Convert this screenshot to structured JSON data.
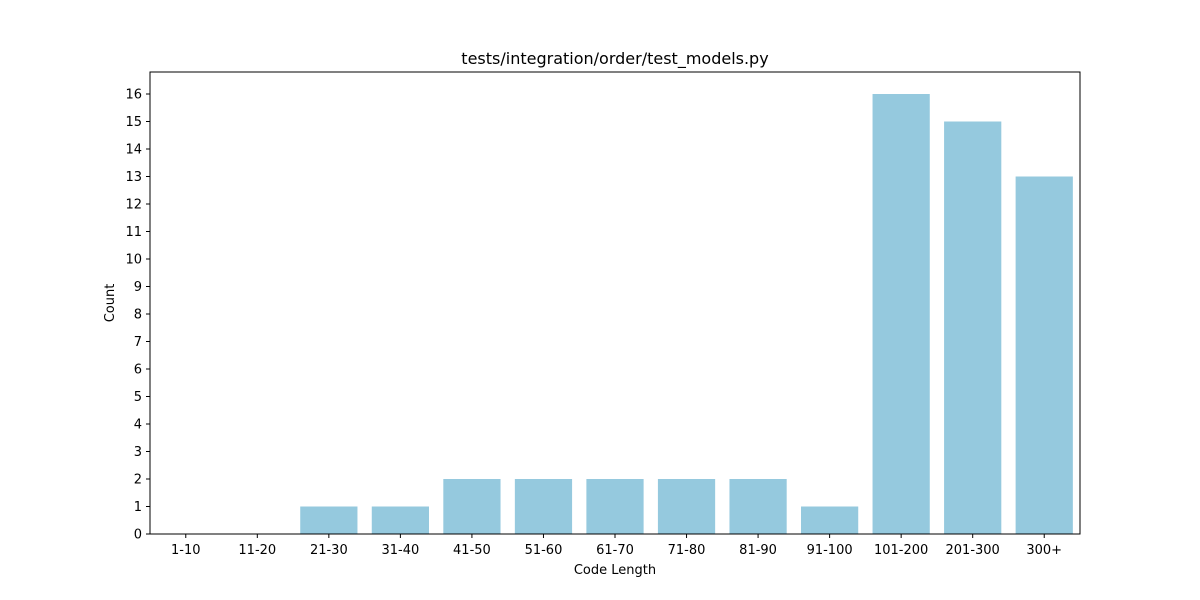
{
  "chart_data": {
    "type": "bar",
    "title": "tests/integration/order/test_models.py",
    "xlabel": "Code Length",
    "ylabel": "Count",
    "categories": [
      "1-10",
      "11-20",
      "21-30",
      "31-40",
      "41-50",
      "51-60",
      "61-70",
      "71-80",
      "81-90",
      "91-100",
      "101-200",
      "201-300",
      "300+"
    ],
    "values": [
      0,
      0,
      1,
      1,
      2,
      2,
      2,
      2,
      2,
      1,
      16,
      15,
      13
    ],
    "ylim": [
      0,
      16.8
    ],
    "yticks": [
      0,
      1,
      2,
      3,
      4,
      5,
      6,
      7,
      8,
      9,
      10,
      11,
      12,
      13,
      14,
      15,
      16
    ],
    "grid": false,
    "bar_color": "#95c9de"
  }
}
